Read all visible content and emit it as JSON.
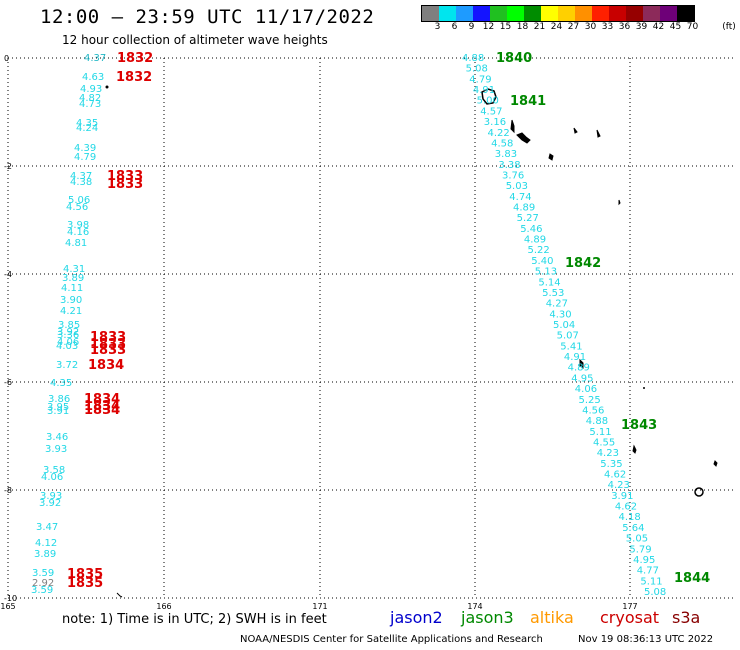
{
  "header": {
    "title": "12:00 – 23:59 UTC 11/17/2022",
    "subtitle": "12 hour collection of altimeter wave heights"
  },
  "legend": {
    "unit": "(ft)",
    "bins": [
      {
        "label": "3",
        "color": "#7f7f7f"
      },
      {
        "label": "6",
        "color": "#00e5ee"
      },
      {
        "label": "9",
        "color": "#1e9bff"
      },
      {
        "label": "12",
        "color": "#1414ff"
      },
      {
        "label": "15",
        "color": "#20c020"
      },
      {
        "label": "18",
        "color": "#00ff00"
      },
      {
        "label": "21",
        "color": "#008c00"
      },
      {
        "label": "24",
        "color": "#ffff00"
      },
      {
        "label": "27",
        "color": "#ffd000"
      },
      {
        "label": "30",
        "color": "#ff9000"
      },
      {
        "label": "33",
        "color": "#ff2000"
      },
      {
        "label": "36",
        "color": "#c80000"
      },
      {
        "label": "39",
        "color": "#960000"
      },
      {
        "label": "42",
        "color": "#8c2a5a"
      },
      {
        "label": "45",
        "color": "#6e0078"
      },
      {
        "label": "70",
        "color": "#000000"
      }
    ]
  },
  "axes": {
    "x_ticks": [
      "165",
      "166",
      "171",
      "174",
      "177"
    ],
    "y_ticks": [
      "0",
      "-2",
      "-4",
      "-6",
      "-8",
      "-10"
    ]
  },
  "tracks": {
    "west": {
      "values": [
        "4.37",
        "4.63",
        "4.93",
        "4.82",
        "4.73",
        "4.35",
        "4.24",
        "4.39",
        "4.79",
        "4.37",
        "4.38",
        "5.06",
        "4.56",
        "3.98",
        "4.16",
        "4.81",
        "4.31",
        "3.89",
        "4.11",
        "3.90",
        "4.21",
        "3.85",
        "3.92",
        "3.36",
        "4.06",
        "4.03",
        "3.72",
        "4.35",
        "3.86",
        "3.95",
        "3.91",
        "3.46",
        "3.93",
        "3.58",
        "4.06",
        "3.93",
        "3.92",
        "3.47",
        "4.12",
        "3.89",
        "3.59",
        "2.92",
        "3.59"
      ],
      "times": [
        "1832",
        "1832",
        "1833",
        "1833",
        "1833",
        "1833",
        "1833",
        "1834",
        "1834",
        "1834",
        "1834",
        "1835",
        "1835"
      ]
    },
    "east": {
      "values": [
        "4.88",
        "5.08",
        "4.79",
        "4.91",
        "5.00",
        "4.57",
        "3.16",
        "4.22",
        "4.58",
        "3.83",
        "3.38",
        "3.76",
        "5.03",
        "4.74",
        "4.89",
        "5.27",
        "5.46",
        "4.89",
        "5.22",
        "5.40",
        "5.13",
        "5.14",
        "5.53",
        "4.27",
        "4.30",
        "5.04",
        "5.07",
        "5.41",
        "4.91",
        "4.89",
        "4.95",
        "4.06",
        "5.25",
        "4.56",
        "4.88",
        "5.11",
        "4.55",
        "4.23",
        "5.35",
        "4.62",
        "4.23",
        "3.91",
        "4.62",
        "4.18",
        "5.64",
        "5.05",
        "5.79",
        "4.95",
        "4.77",
        "5.11",
        "5.08"
      ],
      "times": [
        "1840",
        "1841",
        "1842",
        "1843",
        "1844"
      ]
    }
  },
  "colors": {
    "track_values": "#22d8e6",
    "west_times": "#dd0000",
    "east_times": "#008800",
    "west_first_value": "#22b8c6",
    "gray_value": "#7f7f7f"
  },
  "footer": {
    "note": "note:  1) Time is in UTC;  2) SWH is in feet",
    "satellites": [
      {
        "name": "jason2",
        "color": "#0000cc"
      },
      {
        "name": "jason3",
        "color": "#008800"
      },
      {
        "name": "altika",
        "color": "#ff9900"
      },
      {
        "name": "cryosat",
        "color": "#cc0000"
      },
      {
        "name": "s3a",
        "color": "#880000"
      }
    ],
    "credit": "NOAA/NESDIS Center for Satellite Applications and Research",
    "generated": "Nov 19 08:36:13 UTC 2022"
  }
}
